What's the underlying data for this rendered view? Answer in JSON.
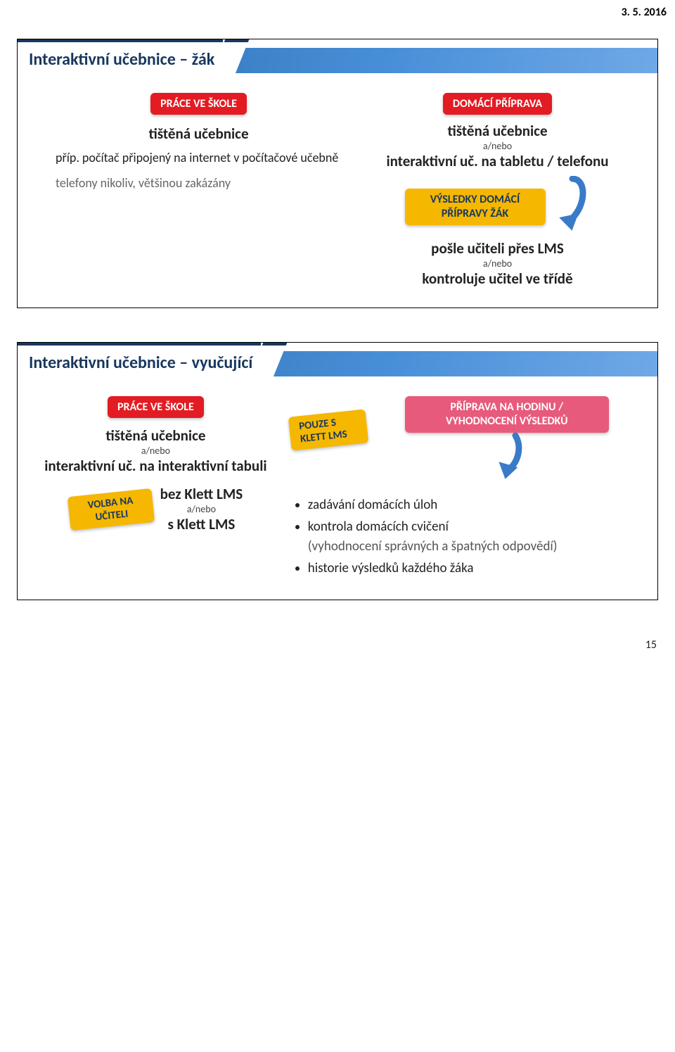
{
  "meta": {
    "date": "3. 5. 2016",
    "page_number": "15"
  },
  "colors": {
    "title": "#17375e",
    "stripe_from": "#2a6fb0",
    "stripe_to": "#6fa8e6",
    "red": "#e31b23",
    "yellow": "#f5b700",
    "pink": "#e75a7c",
    "arrow": "#3a7bc8"
  },
  "slide1": {
    "title": "Interaktivní učebnice – žák",
    "left": {
      "pill": "PRÁCE VE ŠKOLE",
      "l1": "tištěná učebnice",
      "l2": "příp. počítač připojený na internet v počítačové učebně",
      "l3": "telefony nikoliv, většinou zakázány"
    },
    "right": {
      "pill": "DOMÁCÍ PŘÍPRAVA",
      "l1": "tištěná učebnice",
      "sep": "a/nebo",
      "l2": "interaktivní uč. na tabletu / telefonu",
      "results": "VÝSLEDKY DOMÁCÍ PŘÍPRAVY ŽÁK",
      "l3": "pošle učiteli přes LMS",
      "l4": "kontroluje učitel ve třídě"
    }
  },
  "slide2": {
    "title": "Interaktivní učebnice – vyučující",
    "left": {
      "pill": "PRÁCE VE ŠKOLE",
      "l1": "tištěná učebnice",
      "sep": "a/nebo",
      "l2": "interaktivní uč. na interaktivní tabuli",
      "note_rot": "VOLBA NA UČITELI",
      "l3": "bez Klett LMS",
      "l4": "s Klett LMS"
    },
    "right": {
      "note_rot": "POUZE S KLETT LMS",
      "pill": "PŘÍPRAVA NA HODINU / VYHODNOCENÍ VÝSLEDKŮ",
      "b1": "zadávání domácích úloh",
      "b2": "kontrola domácích cvičení",
      "b2s": "(vyhodnocení správných a špatných odpovědí)",
      "b3": "historie výsledků každého žáka"
    }
  }
}
